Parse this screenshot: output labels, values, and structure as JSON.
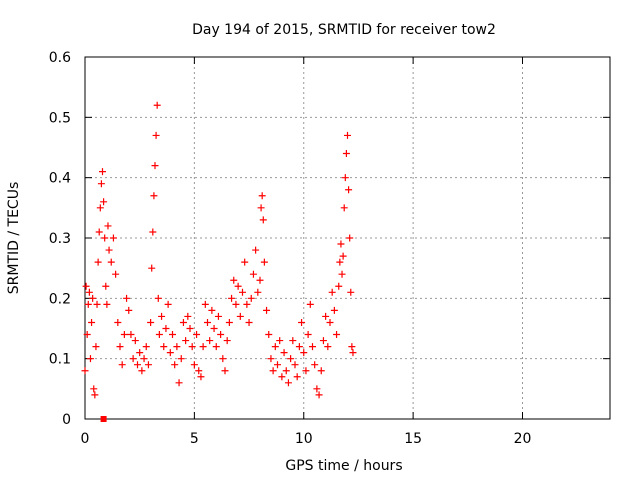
{
  "chart_data": {
    "type": "scatter",
    "title": "Day 194 of 2015, SRMTID for receiver tow2",
    "xlabel": "GPS time / hours",
    "ylabel": "SRMTID / TECUs",
    "xlim": [
      0,
      24
    ],
    "ylim": [
      0,
      0.6
    ],
    "xticks": [
      0,
      5,
      10,
      15,
      20
    ],
    "yticks": [
      0,
      0.1,
      0.2,
      0.3,
      0.4,
      0.5,
      0.6
    ],
    "xtick_labels": [
      "0",
      "5",
      "10",
      "15",
      "20"
    ],
    "ytick_labels": [
      "0",
      "0.1",
      "0.2",
      "0.3",
      "0.4",
      "0.5",
      "0.6"
    ],
    "grid": true,
    "series": [
      {
        "name": "SRMTID tow2",
        "marker": "plus",
        "color": "#ff0000",
        "points": [
          [
            0.0,
            0.08
          ],
          [
            0.05,
            0.22
          ],
          [
            0.1,
            0.14
          ],
          [
            0.15,
            0.19
          ],
          [
            0.2,
            0.21
          ],
          [
            0.25,
            0.1
          ],
          [
            0.3,
            0.16
          ],
          [
            0.35,
            0.2
          ],
          [
            0.4,
            0.05
          ],
          [
            0.45,
            0.04
          ],
          [
            0.5,
            0.12
          ],
          [
            0.55,
            0.19
          ],
          [
            0.6,
            0.26
          ],
          [
            0.65,
            0.31
          ],
          [
            0.7,
            0.35
          ],
          [
            0.75,
            0.39
          ],
          [
            0.8,
            0.41
          ],
          [
            0.85,
            0.36
          ],
          [
            0.9,
            0.3
          ],
          [
            0.95,
            0.22
          ],
          [
            1.0,
            0.19
          ],
          [
            1.05,
            0.32
          ],
          [
            1.1,
            0.28
          ],
          [
            1.2,
            0.26
          ],
          [
            1.3,
            0.3
          ],
          [
            1.4,
            0.24
          ],
          [
            1.5,
            0.16
          ],
          [
            1.6,
            0.12
          ],
          [
            1.7,
            0.09
          ],
          [
            1.8,
            0.14
          ],
          [
            1.9,
            0.2
          ],
          [
            2.0,
            0.18
          ],
          [
            2.1,
            0.14
          ],
          [
            2.2,
            0.1
          ],
          [
            2.3,
            0.13
          ],
          [
            2.4,
            0.09
          ],
          [
            2.5,
            0.11
          ],
          [
            2.6,
            0.08
          ],
          [
            2.7,
            0.1
          ],
          [
            2.8,
            0.12
          ],
          [
            2.9,
            0.09
          ],
          [
            3.0,
            0.16
          ],
          [
            3.05,
            0.25
          ],
          [
            3.1,
            0.31
          ],
          [
            3.15,
            0.37
          ],
          [
            3.2,
            0.42
          ],
          [
            3.25,
            0.47
          ],
          [
            3.3,
            0.52
          ],
          [
            3.35,
            0.2
          ],
          [
            3.4,
            0.14
          ],
          [
            3.5,
            0.17
          ],
          [
            3.6,
            0.12
          ],
          [
            3.7,
            0.15
          ],
          [
            3.8,
            0.19
          ],
          [
            3.9,
            0.11
          ],
          [
            4.0,
            0.14
          ],
          [
            4.1,
            0.09
          ],
          [
            4.2,
            0.12
          ],
          [
            4.3,
            0.06
          ],
          [
            4.4,
            0.1
          ],
          [
            4.5,
            0.16
          ],
          [
            4.6,
            0.13
          ],
          [
            4.7,
            0.17
          ],
          [
            4.8,
            0.15
          ],
          [
            4.9,
            0.12
          ],
          [
            5.0,
            0.09
          ],
          [
            5.1,
            0.14
          ],
          [
            5.2,
            0.08
          ],
          [
            5.3,
            0.07
          ],
          [
            5.4,
            0.12
          ],
          [
            5.5,
            0.19
          ],
          [
            5.6,
            0.16
          ],
          [
            5.7,
            0.13
          ],
          [
            5.8,
            0.18
          ],
          [
            5.9,
            0.15
          ],
          [
            6.0,
            0.12
          ],
          [
            6.1,
            0.17
          ],
          [
            6.2,
            0.14
          ],
          [
            6.3,
            0.1
          ],
          [
            6.4,
            0.08
          ],
          [
            6.5,
            0.13
          ],
          [
            6.6,
            0.16
          ],
          [
            6.7,
            0.2
          ],
          [
            6.8,
            0.23
          ],
          [
            6.9,
            0.19
          ],
          [
            7.0,
            0.22
          ],
          [
            7.1,
            0.17
          ],
          [
            7.2,
            0.21
          ],
          [
            7.3,
            0.26
          ],
          [
            7.4,
            0.19
          ],
          [
            7.5,
            0.16
          ],
          [
            7.6,
            0.2
          ],
          [
            7.7,
            0.24
          ],
          [
            7.8,
            0.28
          ],
          [
            7.9,
            0.21
          ],
          [
            8.0,
            0.23
          ],
          [
            8.05,
            0.35
          ],
          [
            8.1,
            0.37
          ],
          [
            8.15,
            0.33
          ],
          [
            8.2,
            0.26
          ],
          [
            8.3,
            0.18
          ],
          [
            8.4,
            0.14
          ],
          [
            8.5,
            0.1
          ],
          [
            8.6,
            0.08
          ],
          [
            8.7,
            0.12
          ],
          [
            8.8,
            0.09
          ],
          [
            8.9,
            0.13
          ],
          [
            9.0,
            0.07
          ],
          [
            9.1,
            0.11
          ],
          [
            9.2,
            0.08
          ],
          [
            9.3,
            0.06
          ],
          [
            9.4,
            0.1
          ],
          [
            9.5,
            0.13
          ],
          [
            9.6,
            0.09
          ],
          [
            9.7,
            0.07
          ],
          [
            9.8,
            0.12
          ],
          [
            9.9,
            0.16
          ],
          [
            10.0,
            0.11
          ],
          [
            10.1,
            0.08
          ],
          [
            10.2,
            0.14
          ],
          [
            10.3,
            0.19
          ],
          [
            10.4,
            0.12
          ],
          [
            10.5,
            0.09
          ],
          [
            10.6,
            0.05
          ],
          [
            10.7,
            0.04
          ],
          [
            10.8,
            0.08
          ],
          [
            10.9,
            0.13
          ],
          [
            11.0,
            0.17
          ],
          [
            11.1,
            0.12
          ],
          [
            11.2,
            0.16
          ],
          [
            11.3,
            0.21
          ],
          [
            11.4,
            0.18
          ],
          [
            11.5,
            0.14
          ],
          [
            11.6,
            0.22
          ],
          [
            11.65,
            0.26
          ],
          [
            11.7,
            0.29
          ],
          [
            11.75,
            0.24
          ],
          [
            11.8,
            0.27
          ],
          [
            11.85,
            0.35
          ],
          [
            11.9,
            0.4
          ],
          [
            11.95,
            0.44
          ],
          [
            12.0,
            0.47
          ],
          [
            12.05,
            0.38
          ],
          [
            12.1,
            0.3
          ],
          [
            12.15,
            0.21
          ],
          [
            12.2,
            0.12
          ],
          [
            12.25,
            0.11
          ]
        ]
      }
    ],
    "annotations": [
      {
        "type": "square-marker",
        "x": 0.85,
        "y": 0.0,
        "color": "#ff0000"
      }
    ]
  }
}
